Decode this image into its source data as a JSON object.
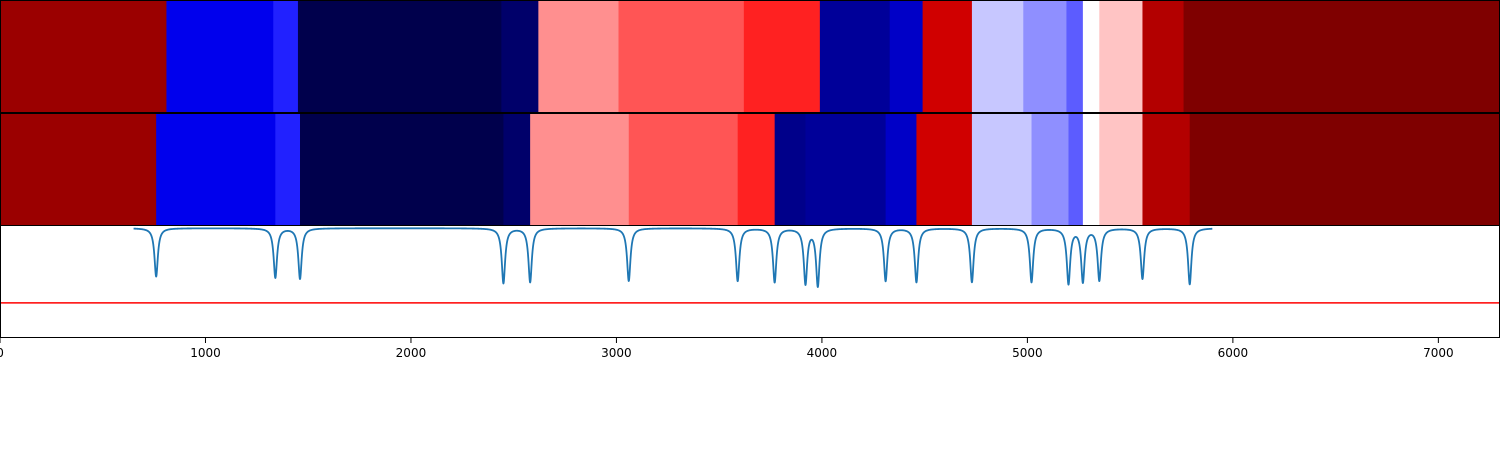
{
  "chart_data": {
    "type": "heatmap",
    "xlim": [
      0,
      7300
    ],
    "x_ticks": [
      0,
      1000,
      2000,
      3000,
      4000,
      5000,
      6000,
      7000
    ],
    "x_tick_labels": [
      "0",
      "1000",
      "2000",
      "3000",
      "4000",
      "5000",
      "6000",
      "7000"
    ],
    "grid": false,
    "rows": [
      {
        "segments": [
          {
            "start": 0,
            "end": 810,
            "color": "#9b0000"
          },
          {
            "start": 810,
            "end": 1330,
            "color": "#0000ed"
          },
          {
            "start": 1330,
            "end": 1450,
            "color": "#2121ff"
          },
          {
            "start": 1450,
            "end": 2440,
            "color": "#00004c"
          },
          {
            "start": 2440,
            "end": 2620,
            "color": "#00006a"
          },
          {
            "start": 2620,
            "end": 3010,
            "color": "#ff8f8f"
          },
          {
            "start": 3010,
            "end": 3620,
            "color": "#ff5555"
          },
          {
            "start": 3620,
            "end": 3990,
            "color": "#ff2121"
          },
          {
            "start": 3990,
            "end": 4330,
            "color": "#000099"
          },
          {
            "start": 4330,
            "end": 4490,
            "color": "#0000c7"
          },
          {
            "start": 4490,
            "end": 4730,
            "color": "#d00000"
          },
          {
            "start": 4730,
            "end": 4980,
            "color": "#c7c7ff"
          },
          {
            "start": 4980,
            "end": 5190,
            "color": "#8f8fff"
          },
          {
            "start": 5190,
            "end": 5270,
            "color": "#5c5cff"
          },
          {
            "start": 5270,
            "end": 5350,
            "color": "#ffffff"
          },
          {
            "start": 5350,
            "end": 5560,
            "color": "#ffc4c4"
          },
          {
            "start": 5560,
            "end": 5760,
            "color": "#b30000"
          },
          {
            "start": 5760,
            "end": 7300,
            "color": "#7f0000"
          }
        ]
      },
      {
        "segments": [
          {
            "start": 0,
            "end": 760,
            "color": "#9b0000"
          },
          {
            "start": 760,
            "end": 1340,
            "color": "#0000ed"
          },
          {
            "start": 1340,
            "end": 1460,
            "color": "#2121ff"
          },
          {
            "start": 1460,
            "end": 2450,
            "color": "#00004c"
          },
          {
            "start": 2450,
            "end": 2580,
            "color": "#00006a"
          },
          {
            "start": 2580,
            "end": 3060,
            "color": "#ff8f8f"
          },
          {
            "start": 3060,
            "end": 3590,
            "color": "#ff5555"
          },
          {
            "start": 3590,
            "end": 3770,
            "color": "#ff2121"
          },
          {
            "start": 3770,
            "end": 3920,
            "color": "#00008a"
          },
          {
            "start": 3920,
            "end": 3980,
            "color": "#000099"
          },
          {
            "start": 3980,
            "end": 4310,
            "color": "#000099"
          },
          {
            "start": 4310,
            "end": 4460,
            "color": "#0000c7"
          },
          {
            "start": 4460,
            "end": 4730,
            "color": "#d00000"
          },
          {
            "start": 4730,
            "end": 5020,
            "color": "#c7c7ff"
          },
          {
            "start": 5020,
            "end": 5200,
            "color": "#8f8fff"
          },
          {
            "start": 5200,
            "end": 5270,
            "color": "#5c5cff"
          },
          {
            "start": 5270,
            "end": 5350,
            "color": "#ffffff"
          },
          {
            "start": 5350,
            "end": 5560,
            "color": "#ffc4c4"
          },
          {
            "start": 5560,
            "end": 5790,
            "color": "#b30000"
          },
          {
            "start": 5790,
            "end": 7300,
            "color": "#7f0000"
          }
        ]
      }
    ],
    "signal": {
      "type": "line",
      "color": "#1f77b4",
      "baseline": 0,
      "ylim": [
        -1.0,
        0.02
      ],
      "dips": [
        {
          "x": 760,
          "depth": 0.44
        },
        {
          "x": 1340,
          "depth": 0.45
        },
        {
          "x": 1460,
          "depth": 0.46
        },
        {
          "x": 2450,
          "depth": 0.5
        },
        {
          "x": 2580,
          "depth": 0.49
        },
        {
          "x": 3060,
          "depth": 0.48
        },
        {
          "x": 3590,
          "depth": 0.48
        },
        {
          "x": 3770,
          "depth": 0.49
        },
        {
          "x": 3920,
          "depth": 0.5
        },
        {
          "x": 3980,
          "depth": 0.52
        },
        {
          "x": 4310,
          "depth": 0.48
        },
        {
          "x": 4460,
          "depth": 0.49
        },
        {
          "x": 4730,
          "depth": 0.49
        },
        {
          "x": 5020,
          "depth": 0.49
        },
        {
          "x": 5200,
          "depth": 0.5
        },
        {
          "x": 5270,
          "depth": 0.48
        },
        {
          "x": 5350,
          "depth": 0.47
        },
        {
          "x": 5560,
          "depth": 0.46
        },
        {
          "x": 5790,
          "depth": 0.51
        }
      ],
      "threshold": {
        "value": -0.68,
        "color": "#ff0000"
      }
    }
  }
}
